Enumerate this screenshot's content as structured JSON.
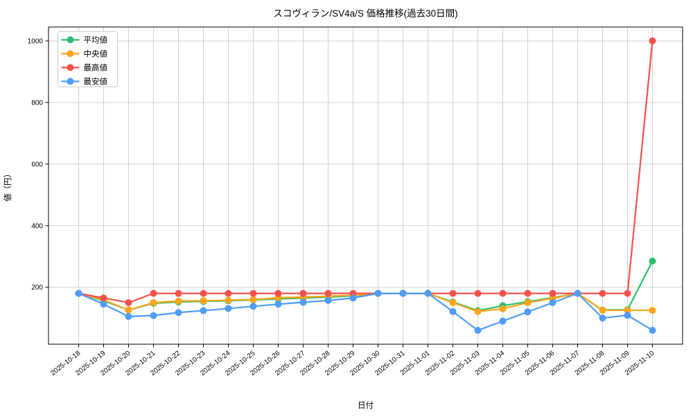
{
  "title": "スコヴィラン/SV4a/S 価格推移(過去30日間)",
  "chart_data": {
    "type": "line",
    "title": "スコヴィラン/SV4a/S 価格推移(過去30日間)",
    "xlabel": "日付",
    "ylabel": "値（円）",
    "x": [
      "2025-10-18",
      "2025-10-19",
      "2025-10-20",
      "2025-10-21",
      "2025-10-22",
      "2025-10-23",
      "2025-10-24",
      "2025-10-25",
      "2025-10-26",
      "2025-10-27",
      "2025-10-28",
      "2025-10-29",
      "2025-10-30",
      "2025-10-31",
      "2025-11-01",
      "2025-11-02",
      "2025-11-03",
      "2025-11-04",
      "2025-11-05",
      "2025-11-06",
      "2025-11-07",
      "2025-11-08",
      "2025-11-09",
      "2025-11-10"
    ],
    "series": [
      {
        "key": "average",
        "name": "平均値",
        "color": "#2EBE6C",
        "values": [
          180,
          156,
          126,
          148,
          152,
          154,
          156,
          159,
          162,
          165,
          168,
          172,
          180,
          180,
          180,
          152,
          124,
          140,
          153,
          166,
          180,
          126,
          127,
          285
        ]
      },
      {
        "key": "median",
        "name": "中央値",
        "color": "#FFA41B",
        "values": [
          180,
          159,
          126,
          150,
          155,
          156,
          158,
          160,
          166,
          168,
          171,
          174,
          180,
          180,
          180,
          150,
          121,
          130,
          150,
          164,
          180,
          125,
          125,
          125
        ]
      },
      {
        "key": "max",
        "name": "最高値",
        "color": "#F4514C",
        "values": [
          180,
          165,
          150,
          180,
          180,
          180,
          180,
          180,
          180,
          180,
          180,
          180,
          180,
          180,
          180,
          180,
          180,
          180,
          180,
          180,
          180,
          180,
          180,
          1000
        ]
      },
      {
        "key": "min",
        "name": "最安値",
        "color": "#4F9CFA",
        "values": [
          180,
          145,
          105,
          108,
          118,
          124,
          131,
          138,
          145,
          151,
          157,
          165,
          180,
          180,
          180,
          121,
          60,
          90,
          120,
          150,
          180,
          100,
          109,
          60
        ]
      }
    ],
    "ylim": [
      15,
      1045
    ],
    "yticks": [
      200,
      400,
      600,
      800,
      1000
    ],
    "grid": true,
    "legend_position": "upper left",
    "marker": "circle",
    "colors": {
      "grid": "#d2d2d2",
      "axis": "#000000",
      "legend_border": "#cccccc",
      "background": "#ffffff"
    }
  }
}
